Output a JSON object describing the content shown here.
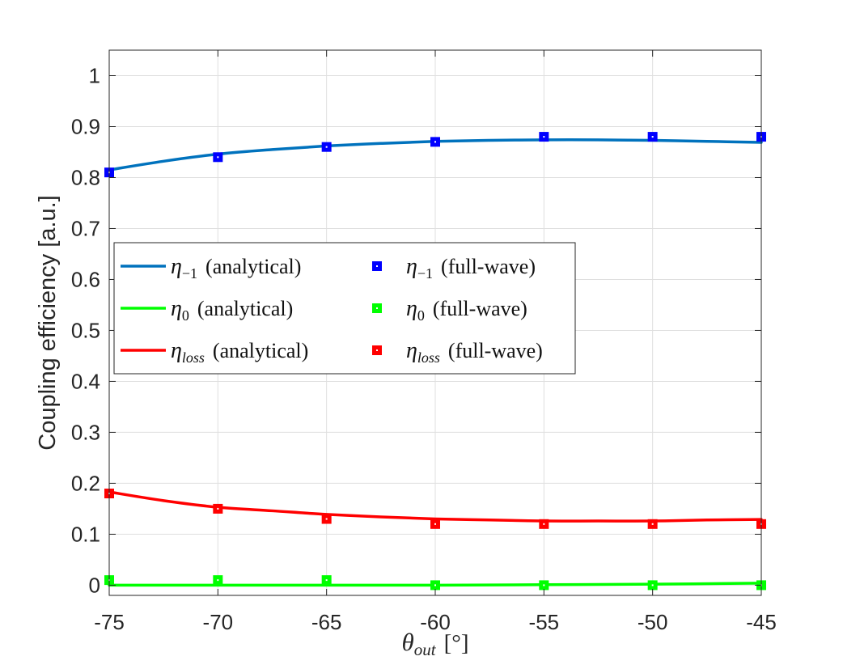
{
  "chart_data": {
    "type": "line",
    "title": "",
    "xlabel": "θout [°]",
    "xlabel_parts": {
      "symbol": "θ",
      "subscript": "out",
      "unit": "[°]"
    },
    "ylabel": "Coupling efficiency [a.u.]",
    "xlim": [
      -75,
      -45
    ],
    "ylim": [
      -0.02,
      1.05
    ],
    "grid": true,
    "legend_position": "center-left",
    "x_ticks": [
      -75,
      -70,
      -65,
      -60,
      -55,
      -50,
      -45
    ],
    "x_tick_labels": [
      "-75",
      "-70",
      "-65",
      "-60",
      "-55",
      "-50",
      "-45"
    ],
    "y_ticks": [
      0,
      0.1,
      0.2,
      0.3,
      0.4,
      0.5,
      0.6,
      0.7,
      0.8,
      0.9,
      1
    ],
    "y_tick_labels": [
      "0",
      "0.1",
      "0.2",
      "0.3",
      "0.4",
      "0.5",
      "0.6",
      "0.7",
      "0.8",
      "0.9",
      "1"
    ],
    "series": [
      {
        "name": "η−1 (analytical)",
        "symbol": "η",
        "subscript": "−1",
        "suffix": "(analytical)",
        "kind": "line",
        "color": "#0072BD",
        "x": [
          -75,
          -72.5,
          -70,
          -67.5,
          -65,
          -62.5,
          -60,
          -57.5,
          -55,
          -52.5,
          -50,
          -47.5,
          -45
        ],
        "y": [
          0.815,
          0.832,
          0.846,
          0.855,
          0.862,
          0.867,
          0.871,
          0.873,
          0.874,
          0.874,
          0.873,
          0.871,
          0.869
        ]
      },
      {
        "name": "η0 (analytical)",
        "symbol": "η",
        "subscript": "0",
        "suffix": "(analytical)",
        "kind": "line",
        "color": "#00FF00",
        "x": [
          -75,
          -70,
          -65,
          -60,
          -55,
          -50,
          -45
        ],
        "y": [
          0.0,
          0.0,
          0.0,
          0.0,
          0.001,
          0.002,
          0.004
        ]
      },
      {
        "name": "ηloss (analytical)",
        "symbol": "η",
        "subscript": "loss",
        "suffix": "(analytical)",
        "kind": "line",
        "color": "#FF0000",
        "x": [
          -75,
          -72.5,
          -70,
          -67.5,
          -65,
          -62.5,
          -60,
          -57.5,
          -55,
          -52.5,
          -50,
          -47.5,
          -45
        ],
        "y": [
          0.183,
          0.166,
          0.153,
          0.146,
          0.139,
          0.134,
          0.13,
          0.128,
          0.126,
          0.126,
          0.126,
          0.128,
          0.129
        ]
      },
      {
        "name": "η−1 (full-wave)",
        "symbol": "η",
        "subscript": "−1",
        "suffix": "(full-wave)",
        "kind": "markers",
        "color": "#0000FF",
        "x": [
          -75,
          -70,
          -65,
          -60,
          -55,
          -50,
          -45
        ],
        "y": [
          0.81,
          0.84,
          0.86,
          0.87,
          0.88,
          0.88,
          0.88
        ]
      },
      {
        "name": "η0 (full-wave)",
        "symbol": "η",
        "subscript": "0",
        "suffix": "(full-wave)",
        "kind": "markers",
        "color": "#00FF00",
        "x": [
          -75,
          -70,
          -65,
          -60,
          -55,
          -50,
          -45
        ],
        "y": [
          0.01,
          0.01,
          0.01,
          0.0,
          0.0,
          0.0,
          0.0
        ]
      },
      {
        "name": "ηloss (full-wave)",
        "symbol": "η",
        "subscript": "loss",
        "suffix": "(full-wave)",
        "kind": "markers",
        "color": "#FF0000",
        "x": [
          -75,
          -70,
          -65,
          -60,
          -55,
          -50,
          -45
        ],
        "y": [
          0.18,
          0.15,
          0.13,
          0.12,
          0.12,
          0.12,
          0.12
        ]
      }
    ]
  }
}
